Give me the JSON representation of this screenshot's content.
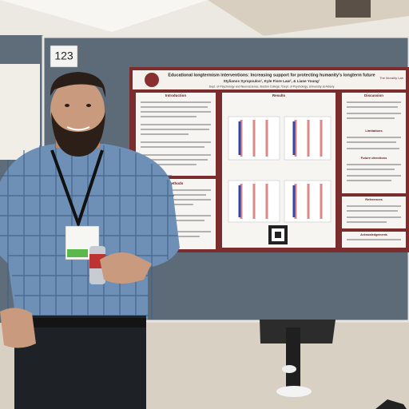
{
  "board_number": "123",
  "poster": {
    "title": "Educational longtermism interventions: Increasing support for protecting humanity's longterm future",
    "authors": "Stylianos Syropoulos¹, Kyle Fiore Law², & Liane Young¹",
    "affiliation": "Dept. of Psychology and Neuroscience, Boston College; ²Dept. of Psychology, University at Albany",
    "lab": "The Morality Lab",
    "sections": [
      "Introduction",
      "Results",
      "Discussion",
      "Methods",
      "Limitations",
      "Future directions",
      "References",
      "Acknowledgements"
    ]
  }
}
